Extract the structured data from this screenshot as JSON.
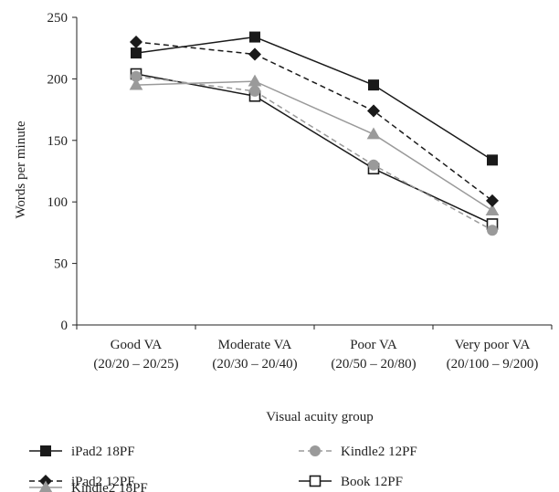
{
  "chart_data": {
    "type": "line",
    "title": "",
    "xlabel": "Visual acuity group",
    "ylabel": "Words per minute",
    "ylim": [
      0,
      250
    ],
    "yticks": [
      0,
      50,
      100,
      150,
      200,
      250
    ],
    "grid": false,
    "legend_position": "bottom",
    "categories": [
      {
        "line1": "Good VA",
        "line2": "(20/20 – 20/25)"
      },
      {
        "line1": "Moderate VA",
        "line2": "(20/30 – 20/40)"
      },
      {
        "line1": "Poor VA",
        "line2": "(20/50 – 20/80)"
      },
      {
        "line1": "Very poor VA",
        "line2": "(20/100 – 9/200)"
      }
    ],
    "series": [
      {
        "name": "iPad2 18PF",
        "values": [
          221,
          234,
          195,
          134
        ],
        "color": "#1a1a1a",
        "dash": "solid",
        "marker": "square-filled"
      },
      {
        "name": "iPad2 12PF",
        "values": [
          230,
          220,
          174,
          101
        ],
        "color": "#1a1a1a",
        "dash": "dashed",
        "marker": "diamond-filled"
      },
      {
        "name": "Kindle2 18PF",
        "values": [
          195,
          198,
          155,
          93
        ],
        "color": "#9a9a9a",
        "dash": "solid",
        "marker": "triangle-filled"
      },
      {
        "name": "Kindle2 12PF",
        "values": [
          202,
          190,
          130,
          77
        ],
        "color": "#9a9a9a",
        "dash": "dashed",
        "marker": "circle-filled"
      },
      {
        "name": "Book 12PF",
        "values": [
          204,
          186,
          127,
          82
        ],
        "color": "#1a1a1a",
        "dash": "solid",
        "marker": "square-open"
      }
    ]
  }
}
